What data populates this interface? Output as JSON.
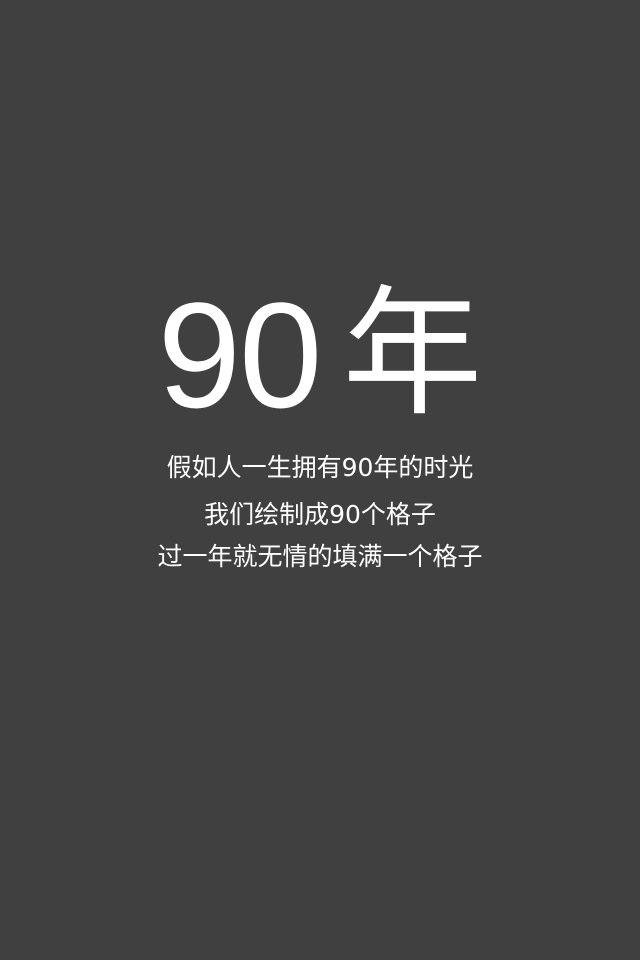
{
  "screen": {
    "background_color": "#404040",
    "text_color": "#ffffff"
  },
  "hero": {
    "number": "90",
    "unit": "年"
  },
  "caption": {
    "lines": [
      "假如人一生拥有90年的时光",
      "我们绘制成90个格子",
      "过一年就无情的填满一个格子"
    ]
  }
}
